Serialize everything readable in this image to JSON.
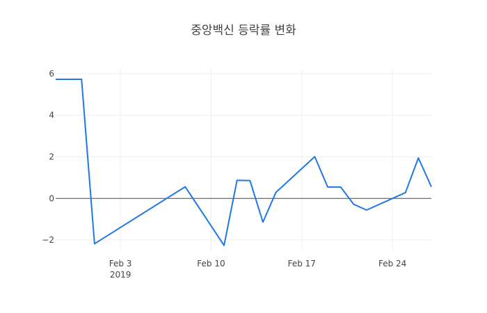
{
  "chart_data": {
    "type": "line",
    "title": "중앙백신 등락률 변화",
    "xlabel": "",
    "ylabel": "",
    "x_range": [
      "2019-01-29",
      "2019-02-27"
    ],
    "ylim": [
      -2.5,
      6.2
    ],
    "grid": true,
    "zero_line": true,
    "x_ticks": [
      {
        "date": "2019-02-03",
        "label": "Feb 3",
        "sublabel": "2019"
      },
      {
        "date": "2019-02-10",
        "label": "Feb 10",
        "sublabel": ""
      },
      {
        "date": "2019-02-17",
        "label": "Feb 17",
        "sublabel": ""
      },
      {
        "date": "2019-02-24",
        "label": "Feb 24",
        "sublabel": ""
      }
    ],
    "y_ticks": [
      -2,
      0,
      2,
      4,
      6
    ],
    "series": [
      {
        "color": "#1f77e4",
        "x": [
          "2019-01-29",
          "2019-01-31",
          "2019-02-01",
          "2019-02-08",
          "2019-02-11",
          "2019-02-12",
          "2019-02-13",
          "2019-02-14",
          "2019-02-15",
          "2019-02-18",
          "2019-02-19",
          "2019-02-20",
          "2019-02-21",
          "2019-02-22",
          "2019-02-25",
          "2019-02-26",
          "2019-02-27"
        ],
        "y": [
          5.73,
          5.73,
          -2.18,
          0.56,
          -2.26,
          0.87,
          0.86,
          -1.14,
          0.29,
          2.01,
          0.55,
          0.55,
          -0.28,
          -0.56,
          0.28,
          1.95,
          0.56
        ]
      }
    ]
  }
}
